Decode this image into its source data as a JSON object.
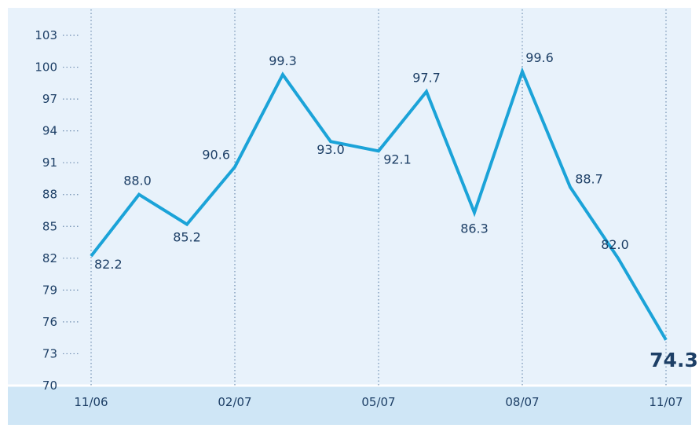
{
  "colors": {
    "plot_bg": "#e8f2fb",
    "bottom_band": "#cfe6f6",
    "line": "#1ba3d8",
    "text": "#1d3f66",
    "grid": "#6f8db0",
    "border": "#b9d6ee"
  },
  "chart_data": {
    "type": "line",
    "title": "",
    "xlabel": "",
    "ylabel": "",
    "ylim": [
      70,
      103
    ],
    "yticks": [
      70,
      73,
      76,
      79,
      82,
      85,
      88,
      91,
      94,
      97,
      100,
      103
    ],
    "xtick_labels": [
      "11/06",
      "02/07",
      "05/07",
      "08/07",
      "11/07"
    ],
    "values": [
      82.2,
      88.0,
      85.2,
      90.6,
      99.3,
      93.0,
      92.1,
      97.7,
      86.3,
      99.6,
      88.7,
      82.0,
      74.3
    ],
    "value_labels": [
      "82.2",
      "88.0",
      "85.2",
      "90.6",
      "99.3",
      "93.0",
      "92.1",
      "97.7",
      "86.3",
      "99.6",
      "88.7",
      "82.0",
      "74.3"
    ],
    "grid": "vertical dotted at x tick labels; dotted tick marks on y axis",
    "legend": "none"
  }
}
